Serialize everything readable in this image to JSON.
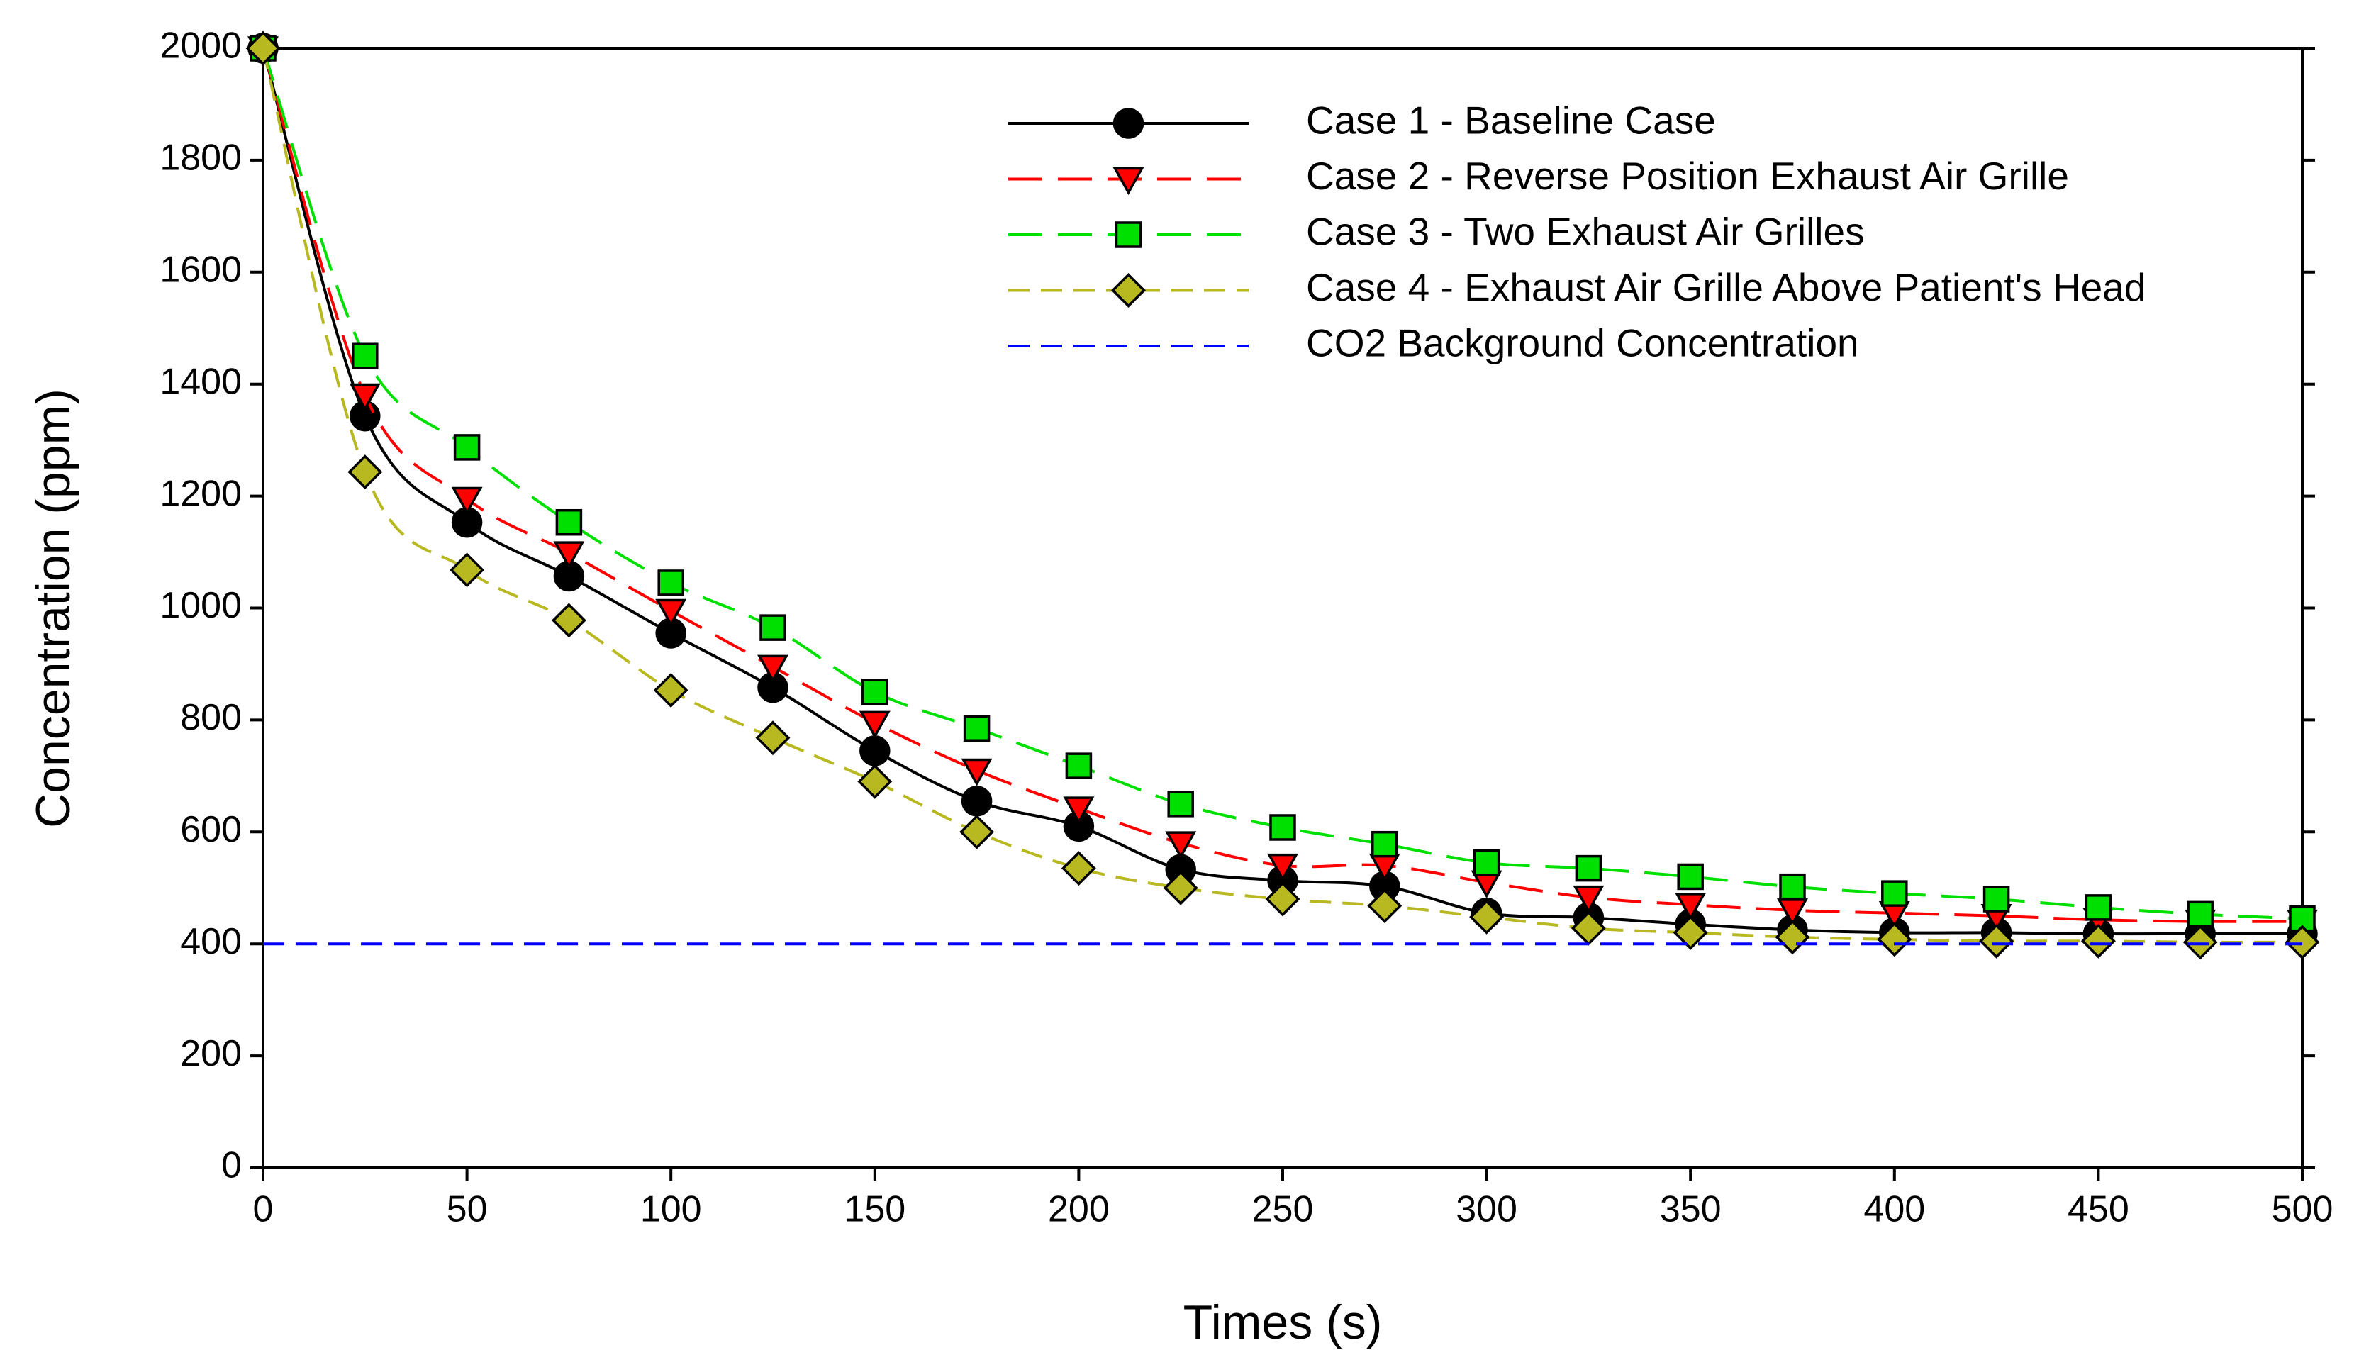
{
  "chart_data": {
    "type": "line",
    "xlabel": "Times (s)",
    "ylabel": "Concentration (ppm)",
    "x": [
      0,
      25,
      50,
      75,
      100,
      125,
      150,
      175,
      200,
      225,
      250,
      275,
      300,
      325,
      350,
      375,
      400,
      425,
      450,
      475,
      500
    ],
    "series": [
      {
        "name": "Case 1 - Baseline Case",
        "color": "#000000",
        "marker": "circle",
        "dash": "none",
        "values": [
          2000,
          1343,
          1153,
          1057,
          955,
          858,
          745,
          655,
          610,
          533,
          513,
          503,
          455,
          447,
          435,
          425,
          420,
          420,
          418,
          418,
          418
        ]
      },
      {
        "name": "Case 2 - Reverse Position Exhaust Air Grille",
        "color": "#ff0000",
        "marker": "triangle-down",
        "dash": "long",
        "values": [
          2000,
          1380,
          1195,
          1098,
          995,
          895,
          795,
          710,
          642,
          580,
          540,
          540,
          510,
          483,
          470,
          460,
          455,
          450,
          443,
          440,
          440
        ]
      },
      {
        "name": "Case 3 - Two Exhaust Air Grilles",
        "color": "#00e000",
        "marker": "square",
        "dash": "long",
        "values": [
          2000,
          1450,
          1287,
          1153,
          1045,
          965,
          850,
          785,
          718,
          650,
          608,
          578,
          545,
          535,
          520,
          502,
          490,
          480,
          465,
          453,
          445
        ]
      },
      {
        "name": "Case 4 - Exhaust Air Grille Above Patient's Head",
        "color": "#b8b820",
        "marker": "diamond",
        "dash": "medium",
        "values": [
          2000,
          1243,
          1068,
          978,
          853,
          768,
          690,
          600,
          535,
          500,
          480,
          468,
          448,
          428,
          420,
          412,
          408,
          405,
          405,
          403,
          403
        ]
      },
      {
        "name": "CO2 Background Concentration",
        "color": "#0000ff",
        "marker": "none",
        "dash": "medium",
        "values": [
          400,
          400,
          400,
          400,
          400,
          400,
          400,
          400,
          400,
          400,
          400,
          400,
          400,
          400,
          400,
          400,
          400,
          400,
          400,
          400,
          400
        ]
      }
    ],
    "xlim": [
      0,
      500
    ],
    "xticks": [
      0,
      50,
      100,
      150,
      200,
      250,
      300,
      350,
      400,
      450,
      500
    ],
    "ylim": [
      0,
      2000
    ],
    "yticks": [
      0,
      200,
      400,
      600,
      800,
      1000,
      1200,
      1400,
      1600,
      1800,
      2000
    ],
    "grid": false,
    "legend": "top-right"
  }
}
